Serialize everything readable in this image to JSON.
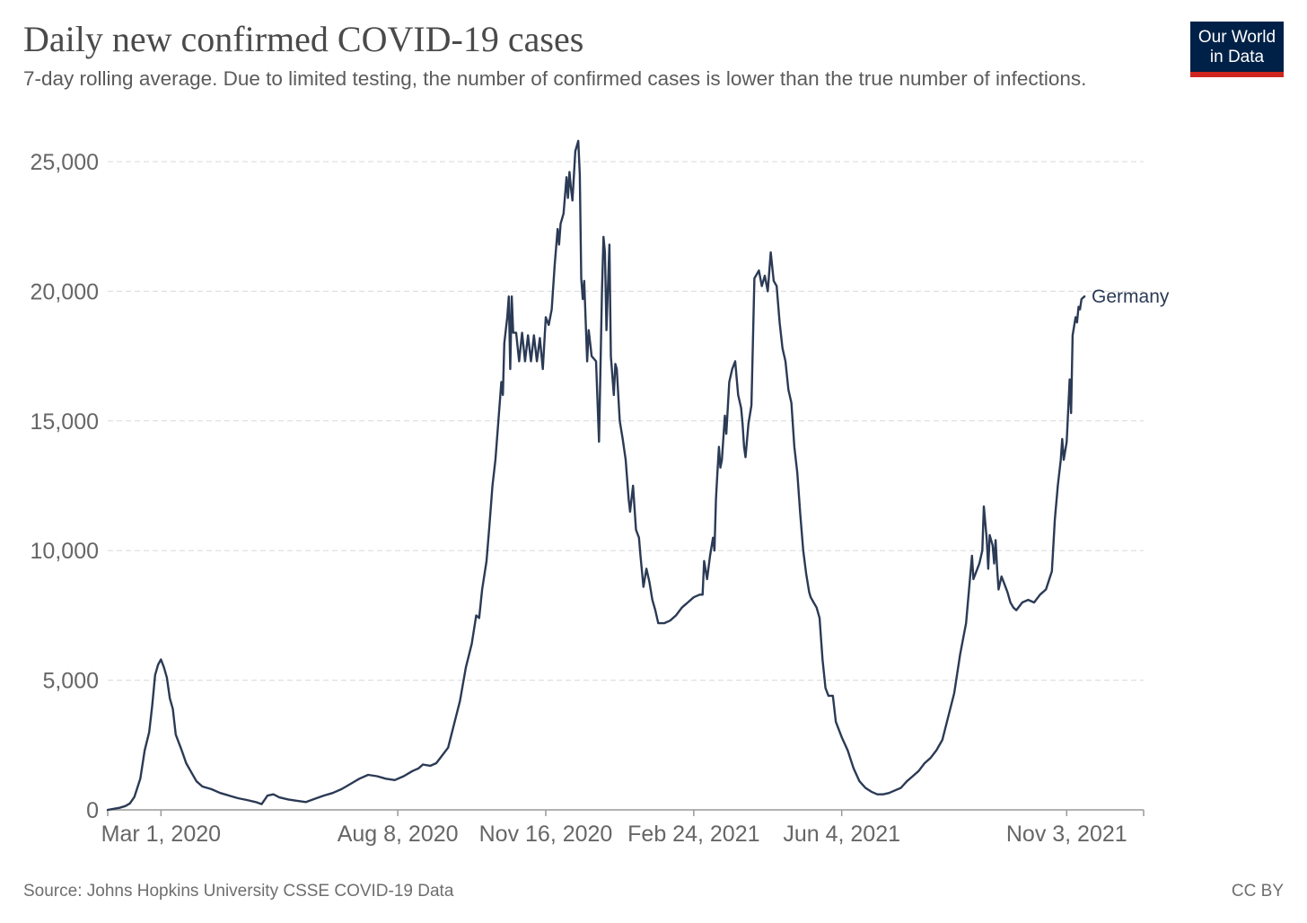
{
  "header": {
    "title": "Daily new confirmed COVID-19 cases",
    "subtitle": "7-day rolling average. Due to limited testing, the number of confirmed cases is lower than the true number of infections.",
    "logo_line1": "Our World",
    "logo_line2": "in Data"
  },
  "footer": {
    "source": "Source: Johns Hopkins University CSSE COVID-19 Data",
    "license": "CC BY"
  },
  "colors": {
    "line": "#2b3a55",
    "grid": "#d9d9d9",
    "logo_bg": "#002147",
    "logo_accent": "#ce261e"
  },
  "chart_data": {
    "type": "line",
    "title": "Daily new confirmed COVID-19 cases",
    "xlabel": "",
    "ylabel": "",
    "ylim": [
      0,
      25000
    ],
    "x_range_days": [
      0,
      700
    ],
    "yticks": [
      {
        "value": 0,
        "label": "0"
      },
      {
        "value": 5000,
        "label": "5,000"
      },
      {
        "value": 10000,
        "label": "10,000"
      },
      {
        "value": 15000,
        "label": "15,000"
      },
      {
        "value": 20000,
        "label": "20,000"
      },
      {
        "value": 25000,
        "label": "25,000"
      }
    ],
    "xticks": [
      {
        "day": 36,
        "label": "Mar 1, 2020"
      },
      {
        "day": 196,
        "label": "Aug 8, 2020"
      },
      {
        "day": 296,
        "label": "Nov 16, 2020"
      },
      {
        "day": 396,
        "label": "Feb 24, 2021"
      },
      {
        "day": 496,
        "label": "Jun 4, 2021"
      },
      {
        "day": 648,
        "label": "Nov 3, 2021"
      }
    ],
    "grid": true,
    "series": [
      {
        "name": "Germany",
        "points": [
          [
            0,
            0
          ],
          [
            5,
            50
          ],
          [
            8,
            80
          ],
          [
            12,
            150
          ],
          [
            15,
            250
          ],
          [
            18,
            500
          ],
          [
            22,
            1200
          ],
          [
            25,
            2300
          ],
          [
            28,
            3000
          ],
          [
            30,
            4000
          ],
          [
            32,
            5200
          ],
          [
            34,
            5600
          ],
          [
            36,
            5800
          ],
          [
            38,
            5500
          ],
          [
            40,
            5100
          ],
          [
            42,
            4300
          ],
          [
            44,
            3900
          ],
          [
            46,
            2900
          ],
          [
            48,
            2600
          ],
          [
            50,
            2300
          ],
          [
            53,
            1800
          ],
          [
            56,
            1500
          ],
          [
            60,
            1100
          ],
          [
            64,
            900
          ],
          [
            70,
            800
          ],
          [
            76,
            650
          ],
          [
            82,
            550
          ],
          [
            88,
            450
          ],
          [
            94,
            380
          ],
          [
            100,
            300
          ],
          [
            104,
            220
          ],
          [
            108,
            550
          ],
          [
            112,
            600
          ],
          [
            116,
            480
          ],
          [
            122,
            400
          ],
          [
            128,
            350
          ],
          [
            134,
            300
          ],
          [
            140,
            430
          ],
          [
            146,
            550
          ],
          [
            152,
            650
          ],
          [
            158,
            800
          ],
          [
            164,
            1000
          ],
          [
            170,
            1200
          ],
          [
            176,
            1350
          ],
          [
            182,
            1300
          ],
          [
            188,
            1200
          ],
          [
            194,
            1150
          ],
          [
            200,
            1300
          ],
          [
            206,
            1500
          ],
          [
            210,
            1600
          ],
          [
            213,
            1750
          ],
          [
            218,
            1700
          ],
          [
            222,
            1800
          ],
          [
            226,
            2100
          ],
          [
            230,
            2400
          ],
          [
            234,
            3300
          ],
          [
            238,
            4200
          ],
          [
            242,
            5500
          ],
          [
            246,
            6400
          ],
          [
            249,
            7500
          ],
          [
            251,
            7400
          ],
          [
            253,
            8500
          ],
          [
            256,
            9600
          ],
          [
            258,
            11000
          ],
          [
            260,
            12500
          ],
          [
            262,
            13500
          ],
          [
            264,
            15000
          ],
          [
            266,
            16500
          ],
          [
            267,
            16000
          ],
          [
            268,
            18000
          ],
          [
            270,
            19000
          ],
          [
            271,
            19800
          ],
          [
            272,
            17000
          ],
          [
            273,
            19800
          ],
          [
            274,
            18400
          ],
          [
            276,
            18400
          ],
          [
            278,
            17300
          ],
          [
            280,
            18400
          ],
          [
            282,
            17300
          ],
          [
            284,
            18300
          ],
          [
            286,
            17300
          ],
          [
            288,
            18300
          ],
          [
            290,
            17300
          ],
          [
            292,
            18200
          ],
          [
            294,
            17000
          ],
          [
            296,
            19000
          ],
          [
            298,
            18700
          ],
          [
            300,
            19300
          ],
          [
            302,
            21000
          ],
          [
            304,
            22400
          ],
          [
            305,
            21800
          ],
          [
            306,
            22600
          ],
          [
            308,
            23000
          ],
          [
            310,
            24400
          ],
          [
            311,
            23600
          ],
          [
            312,
            24600
          ],
          [
            313,
            24000
          ],
          [
            314,
            23500
          ],
          [
            316,
            25400
          ],
          [
            318,
            25800
          ],
          [
            319,
            24500
          ],
          [
            320,
            20500
          ],
          [
            321,
            19700
          ],
          [
            322,
            20400
          ],
          [
            324,
            17300
          ],
          [
            325,
            18500
          ],
          [
            327,
            17500
          ],
          [
            330,
            17300
          ],
          [
            332,
            14200
          ],
          [
            334,
            20000
          ],
          [
            335,
            22100
          ],
          [
            336,
            21500
          ],
          [
            337,
            18500
          ],
          [
            339,
            21800
          ],
          [
            340,
            17500
          ],
          [
            342,
            16000
          ],
          [
            343,
            17200
          ],
          [
            344,
            17000
          ],
          [
            346,
            15000
          ],
          [
            348,
            14300
          ],
          [
            350,
            13500
          ],
          [
            352,
            12000
          ],
          [
            353,
            11500
          ],
          [
            355,
            12500
          ],
          [
            357,
            10800
          ],
          [
            359,
            10500
          ],
          [
            360,
            9800
          ],
          [
            362,
            8600
          ],
          [
            364,
            9300
          ],
          [
            366,
            8800
          ],
          [
            368,
            8100
          ],
          [
            370,
            7700
          ],
          [
            372,
            7200
          ],
          [
            376,
            7200
          ],
          [
            380,
            7300
          ],
          [
            384,
            7500
          ],
          [
            388,
            7800
          ],
          [
            392,
            8000
          ],
          [
            396,
            8200
          ],
          [
            400,
            8300
          ],
          [
            402,
            8300
          ],
          [
            403,
            9600
          ],
          [
            405,
            8900
          ],
          [
            407,
            9800
          ],
          [
            409,
            10500
          ],
          [
            410,
            10000
          ],
          [
            411,
            12000
          ],
          [
            412,
            13000
          ],
          [
            413,
            14000
          ],
          [
            414,
            13200
          ],
          [
            415,
            13500
          ],
          [
            417,
            15200
          ],
          [
            418,
            14500
          ],
          [
            420,
            16500
          ],
          [
            422,
            17000
          ],
          [
            424,
            17300
          ],
          [
            426,
            16000
          ],
          [
            428,
            15500
          ],
          [
            429,
            14900
          ],
          [
            430,
            14000
          ],
          [
            431,
            13600
          ],
          [
            433,
            14900
          ],
          [
            435,
            15600
          ],
          [
            437,
            20500
          ],
          [
            440,
            20800
          ],
          [
            442,
            20200
          ],
          [
            444,
            20600
          ],
          [
            446,
            20000
          ],
          [
            448,
            21500
          ],
          [
            450,
            20400
          ],
          [
            452,
            20200
          ],
          [
            454,
            18800
          ],
          [
            456,
            17800
          ],
          [
            458,
            17300
          ],
          [
            460,
            16200
          ],
          [
            462,
            15700
          ],
          [
            464,
            14000
          ],
          [
            466,
            13000
          ],
          [
            468,
            11400
          ],
          [
            470,
            10000
          ],
          [
            472,
            9100
          ],
          [
            474,
            8400
          ],
          [
            475,
            8200
          ],
          [
            477,
            8000
          ],
          [
            479,
            7800
          ],
          [
            481,
            7400
          ],
          [
            483,
            5800
          ],
          [
            485,
            4700
          ],
          [
            487,
            4400
          ],
          [
            490,
            4400
          ],
          [
            492,
            3400
          ],
          [
            496,
            2800
          ],
          [
            500,
            2300
          ],
          [
            504,
            1600
          ],
          [
            508,
            1100
          ],
          [
            512,
            850
          ],
          [
            516,
            700
          ],
          [
            520,
            600
          ],
          [
            524,
            600
          ],
          [
            528,
            650
          ],
          [
            532,
            750
          ],
          [
            536,
            850
          ],
          [
            540,
            1100
          ],
          [
            544,
            1300
          ],
          [
            548,
            1500
          ],
          [
            552,
            1800
          ],
          [
            556,
            2000
          ],
          [
            560,
            2300
          ],
          [
            564,
            2700
          ],
          [
            568,
            3600
          ],
          [
            572,
            4500
          ],
          [
            576,
            6000
          ],
          [
            580,
            7200
          ],
          [
            582,
            8500
          ],
          [
            584,
            9800
          ],
          [
            585,
            8900
          ],
          [
            587,
            9200
          ],
          [
            589,
            9500
          ],
          [
            591,
            10000
          ],
          [
            592,
            11700
          ],
          [
            594,
            10400
          ],
          [
            595,
            9300
          ],
          [
            596,
            10600
          ],
          [
            598,
            10200
          ],
          [
            599,
            9500
          ],
          [
            600,
            10400
          ],
          [
            601,
            9300
          ],
          [
            602,
            8500
          ],
          [
            604,
            9000
          ],
          [
            606,
            8700
          ],
          [
            608,
            8400
          ],
          [
            610,
            8000
          ],
          [
            612,
            7800
          ],
          [
            614,
            7700
          ],
          [
            618,
            8000
          ],
          [
            622,
            8100
          ],
          [
            626,
            8000
          ],
          [
            630,
            8300
          ],
          [
            634,
            8500
          ],
          [
            638,
            9200
          ],
          [
            640,
            11200
          ],
          [
            642,
            12500
          ],
          [
            644,
            13500
          ],
          [
            645,
            14300
          ],
          [
            646,
            13500
          ],
          [
            648,
            14200
          ],
          [
            650,
            16600
          ],
          [
            651,
            15300
          ],
          [
            652,
            18300
          ],
          [
            654,
            19000
          ],
          [
            655,
            18800
          ],
          [
            656,
            19400
          ],
          [
            657,
            19300
          ],
          [
            658,
            19700
          ],
          [
            660,
            19800
          ]
        ]
      }
    ]
  }
}
